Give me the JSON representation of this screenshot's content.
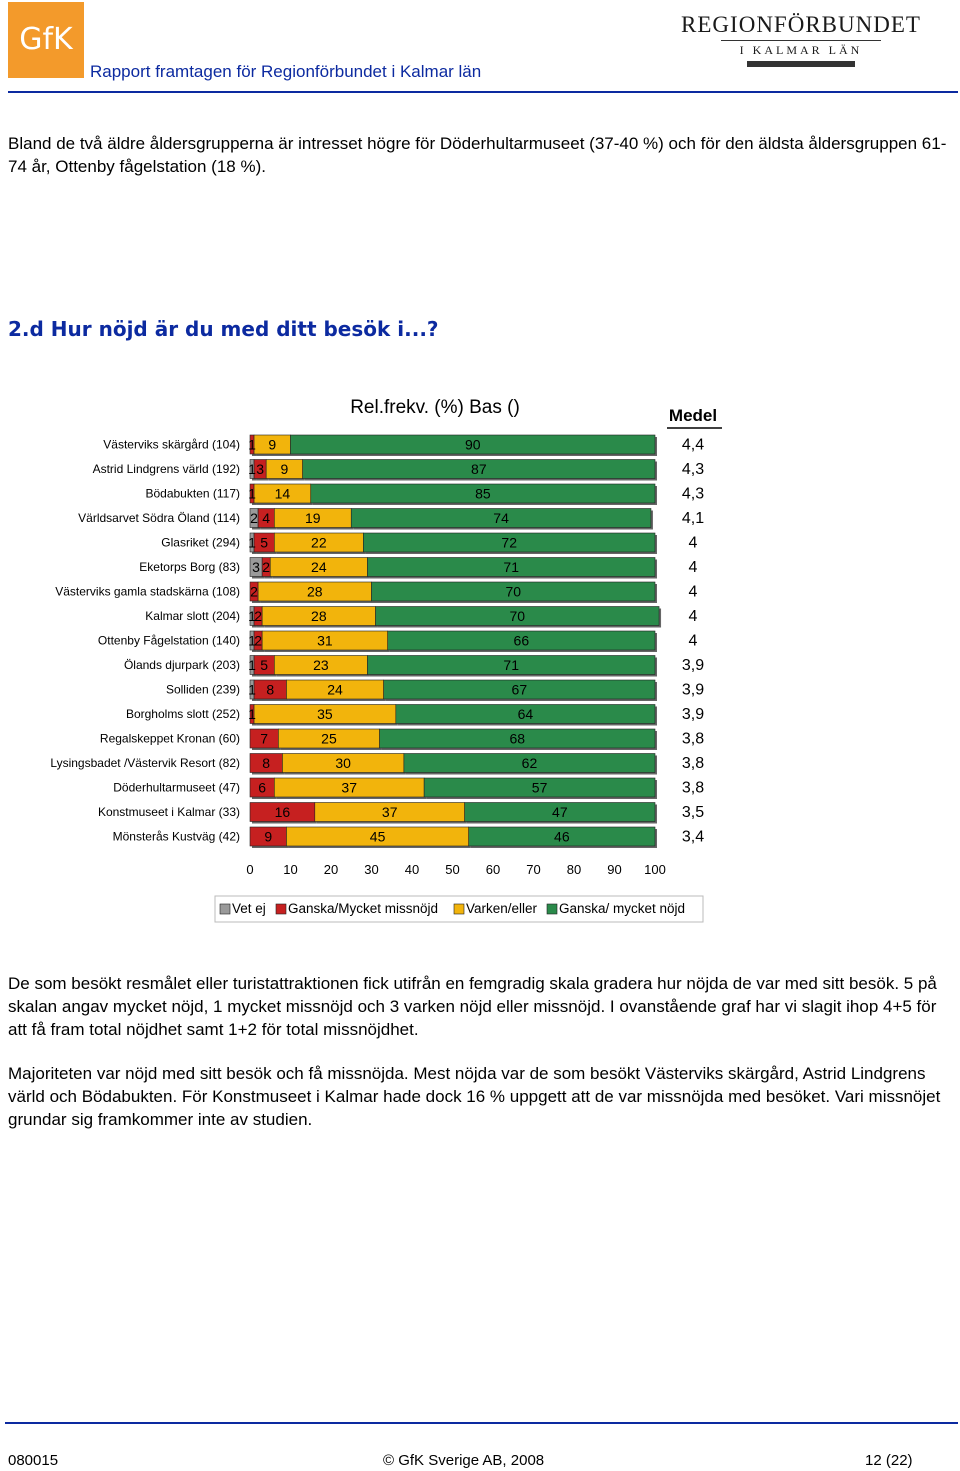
{
  "header": {
    "logo_left_text": "GfK",
    "logo_right_line1": "REGIONFÖRBUNDET",
    "logo_right_line2": "I KALMAR LÄN",
    "report_title": "Rapport framtagen för Regionförbundet i Kalmar län"
  },
  "intro_paragraph": "Bland de två äldre åldersgrupperna är intresset högre för Döderhultarmuseet (37-40 %) och för den äldsta åldersgruppen 61-74 år, Ottenby fågelstation (18 %).",
  "section_heading": "2.d Hur nöjd är du med ditt besök i...?",
  "chart_data": {
    "type": "bar",
    "orientation": "horizontal",
    "stacked": true,
    "title": "Rel.frekv. (%) Bas ()",
    "medel_header": "Medel",
    "xlim": [
      0,
      100
    ],
    "xticks": [
      "0",
      "10",
      "20",
      "30",
      "40",
      "50",
      "60",
      "70",
      "80",
      "90",
      "100"
    ],
    "series_colors": [
      "#9a9a9a",
      "#c62020",
      "#f2b40c",
      "#2a8a4a"
    ],
    "categories": [
      "Västerviks skärgård (104)",
      "Astrid Lindgrens värld (192)",
      "Bödabukten (117)",
      "Världsarvet Södra Öland (114)",
      "Glasriket (294)",
      "Eketorps Borg (83)",
      "Västerviks gamla stadskärna (108)",
      "Kalmar slott (204)",
      "Ottenby Fågelstation (140)",
      "Ölands djurpark (203)",
      "Solliden (239)",
      "Borgholms slott (252)",
      "Regalskeppet Kronan (60)",
      "Lysingsbadet /Västervik Resort (82)",
      "Döderhultarmuseet (47)",
      "Konstmuseet i Kalmar (33)",
      "Mönsterås Kustväg (42)"
    ],
    "series": [
      {
        "name": "Vet ej",
        "values": [
          0,
          1,
          0,
          2,
          1,
          3,
          0,
          1,
          1,
          1,
          1,
          0,
          0,
          0,
          0,
          0,
          0
        ]
      },
      {
        "name": "Ganska/Mycket missnöjd",
        "values": [
          1,
          3,
          1,
          4,
          5,
          2,
          2,
          2,
          2,
          5,
          8,
          1,
          7,
          8,
          6,
          16,
          9
        ]
      },
      {
        "name": "Varken/eller",
        "values": [
          9,
          9,
          14,
          19,
          22,
          24,
          28,
          28,
          31,
          23,
          24,
          35,
          25,
          30,
          37,
          37,
          45
        ]
      },
      {
        "name": "Ganska/ mycket nöjd",
        "values": [
          90,
          87,
          85,
          74,
          72,
          71,
          70,
          70,
          66,
          71,
          67,
          64,
          68,
          62,
          57,
          47,
          46
        ]
      }
    ],
    "medel": [
      "4,4",
      "4,3",
      "4,3",
      "4,1",
      "4",
      "4",
      "4",
      "4",
      "4",
      "3,9",
      "3,9",
      "3,9",
      "3,8",
      "3,8",
      "3,8",
      "3,5",
      "3,4"
    ]
  },
  "body_paragraph_1": "De som besökt resmålet eller turistattraktionen fick utifrån en femgradig skala gradera hur nöjda de var med sitt besök. 5 på skalan angav mycket nöjd, 1 mycket missnöjd och 3 varken nöjd eller missnöjd. I ovanstående graf har vi slagit ihop 4+5 för att få fram total nöjdhet samt 1+2 för total missnöjdhet.",
  "body_paragraph_2": "Majoriteten var nöjd med sitt besök och få missnöjda. Mest nöjda var de som besökt Västerviks skärgård, Astrid Lindgrens värld och Bödabukten. För Konstmuseet i Kalmar hade dock 16 % uppgett att de var missnöjda med besöket. Vari missnöjet grundar sig framkommer inte av studien.",
  "footer": {
    "left": "080015",
    "center": "© GfK Sverige AB, 2008",
    "right": "12 (22)"
  }
}
